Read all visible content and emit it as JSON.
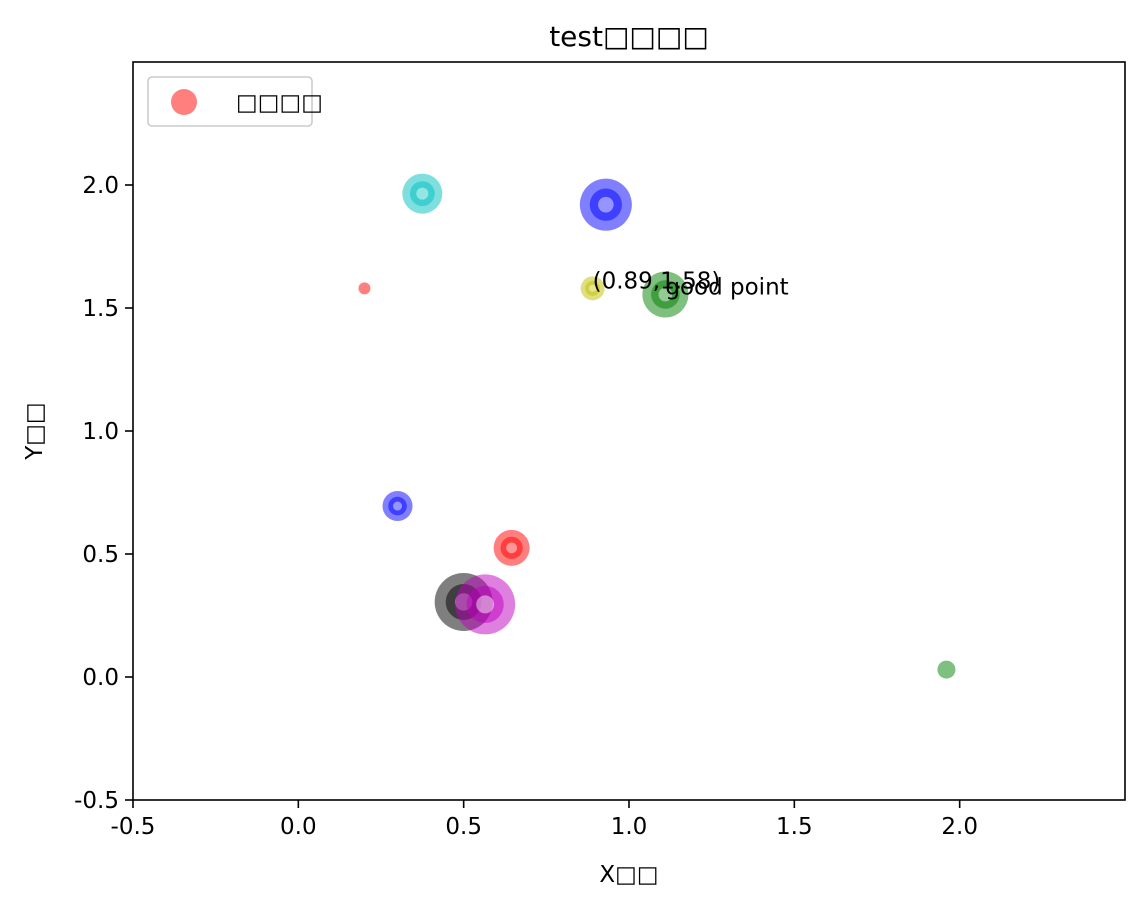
{
  "chart_data": {
    "type": "scatter",
    "title": "test□□□□",
    "xlabel": "X□□",
    "ylabel": "Y□□",
    "xlim": [
      -0.5,
      2.5
    ],
    "ylim": [
      -0.5,
      2.5
    ],
    "x_ticks": [
      "-0.5",
      "0.0",
      "0.5",
      "1.0",
      "1.5",
      "2.0"
    ],
    "y_ticks": [
      "-0.5",
      "0.0",
      "0.5",
      "1.0",
      "1.5",
      "2.0"
    ],
    "grid": false,
    "legend": {
      "placement": "top-left",
      "label": "□□□□",
      "color": "#ff7f7f"
    },
    "points": [
      {
        "x": 0.2,
        "y": 1.58,
        "color": "#ff0000",
        "size": 6
      },
      {
        "x": 0.375,
        "y": 1.965,
        "color": "#00bfbf",
        "size": 20
      },
      {
        "x": 0.93,
        "y": 1.92,
        "color": "#0000ff",
        "size": 26
      },
      {
        "x": 0.89,
        "y": 1.58,
        "color": "#bfbf00",
        "size": 12
      },
      {
        "x": 1.11,
        "y": 1.555,
        "color": "#008000",
        "size": 23
      },
      {
        "x": 0.3,
        "y": 0.695,
        "color": "#0000ff",
        "size": 15
      },
      {
        "x": 0.645,
        "y": 0.525,
        "color": "#ff0000",
        "size": 18
      },
      {
        "x": 0.5,
        "y": 0.305,
        "color": "#000000",
        "size": 29
      },
      {
        "x": 0.565,
        "y": 0.295,
        "color": "#bf00bf",
        "size": 30
      },
      {
        "x": 1.96,
        "y": 0.03,
        "color": "#008000",
        "size": 9
      }
    ],
    "annotations": [
      {
        "text": "(0.89,1.58)",
        "x": 0.89,
        "y": 1.58,
        "color": "#000000"
      },
      {
        "text": "good point",
        "x": 1.11,
        "y": 1.555,
        "color": "#ff0000"
      }
    ]
  }
}
